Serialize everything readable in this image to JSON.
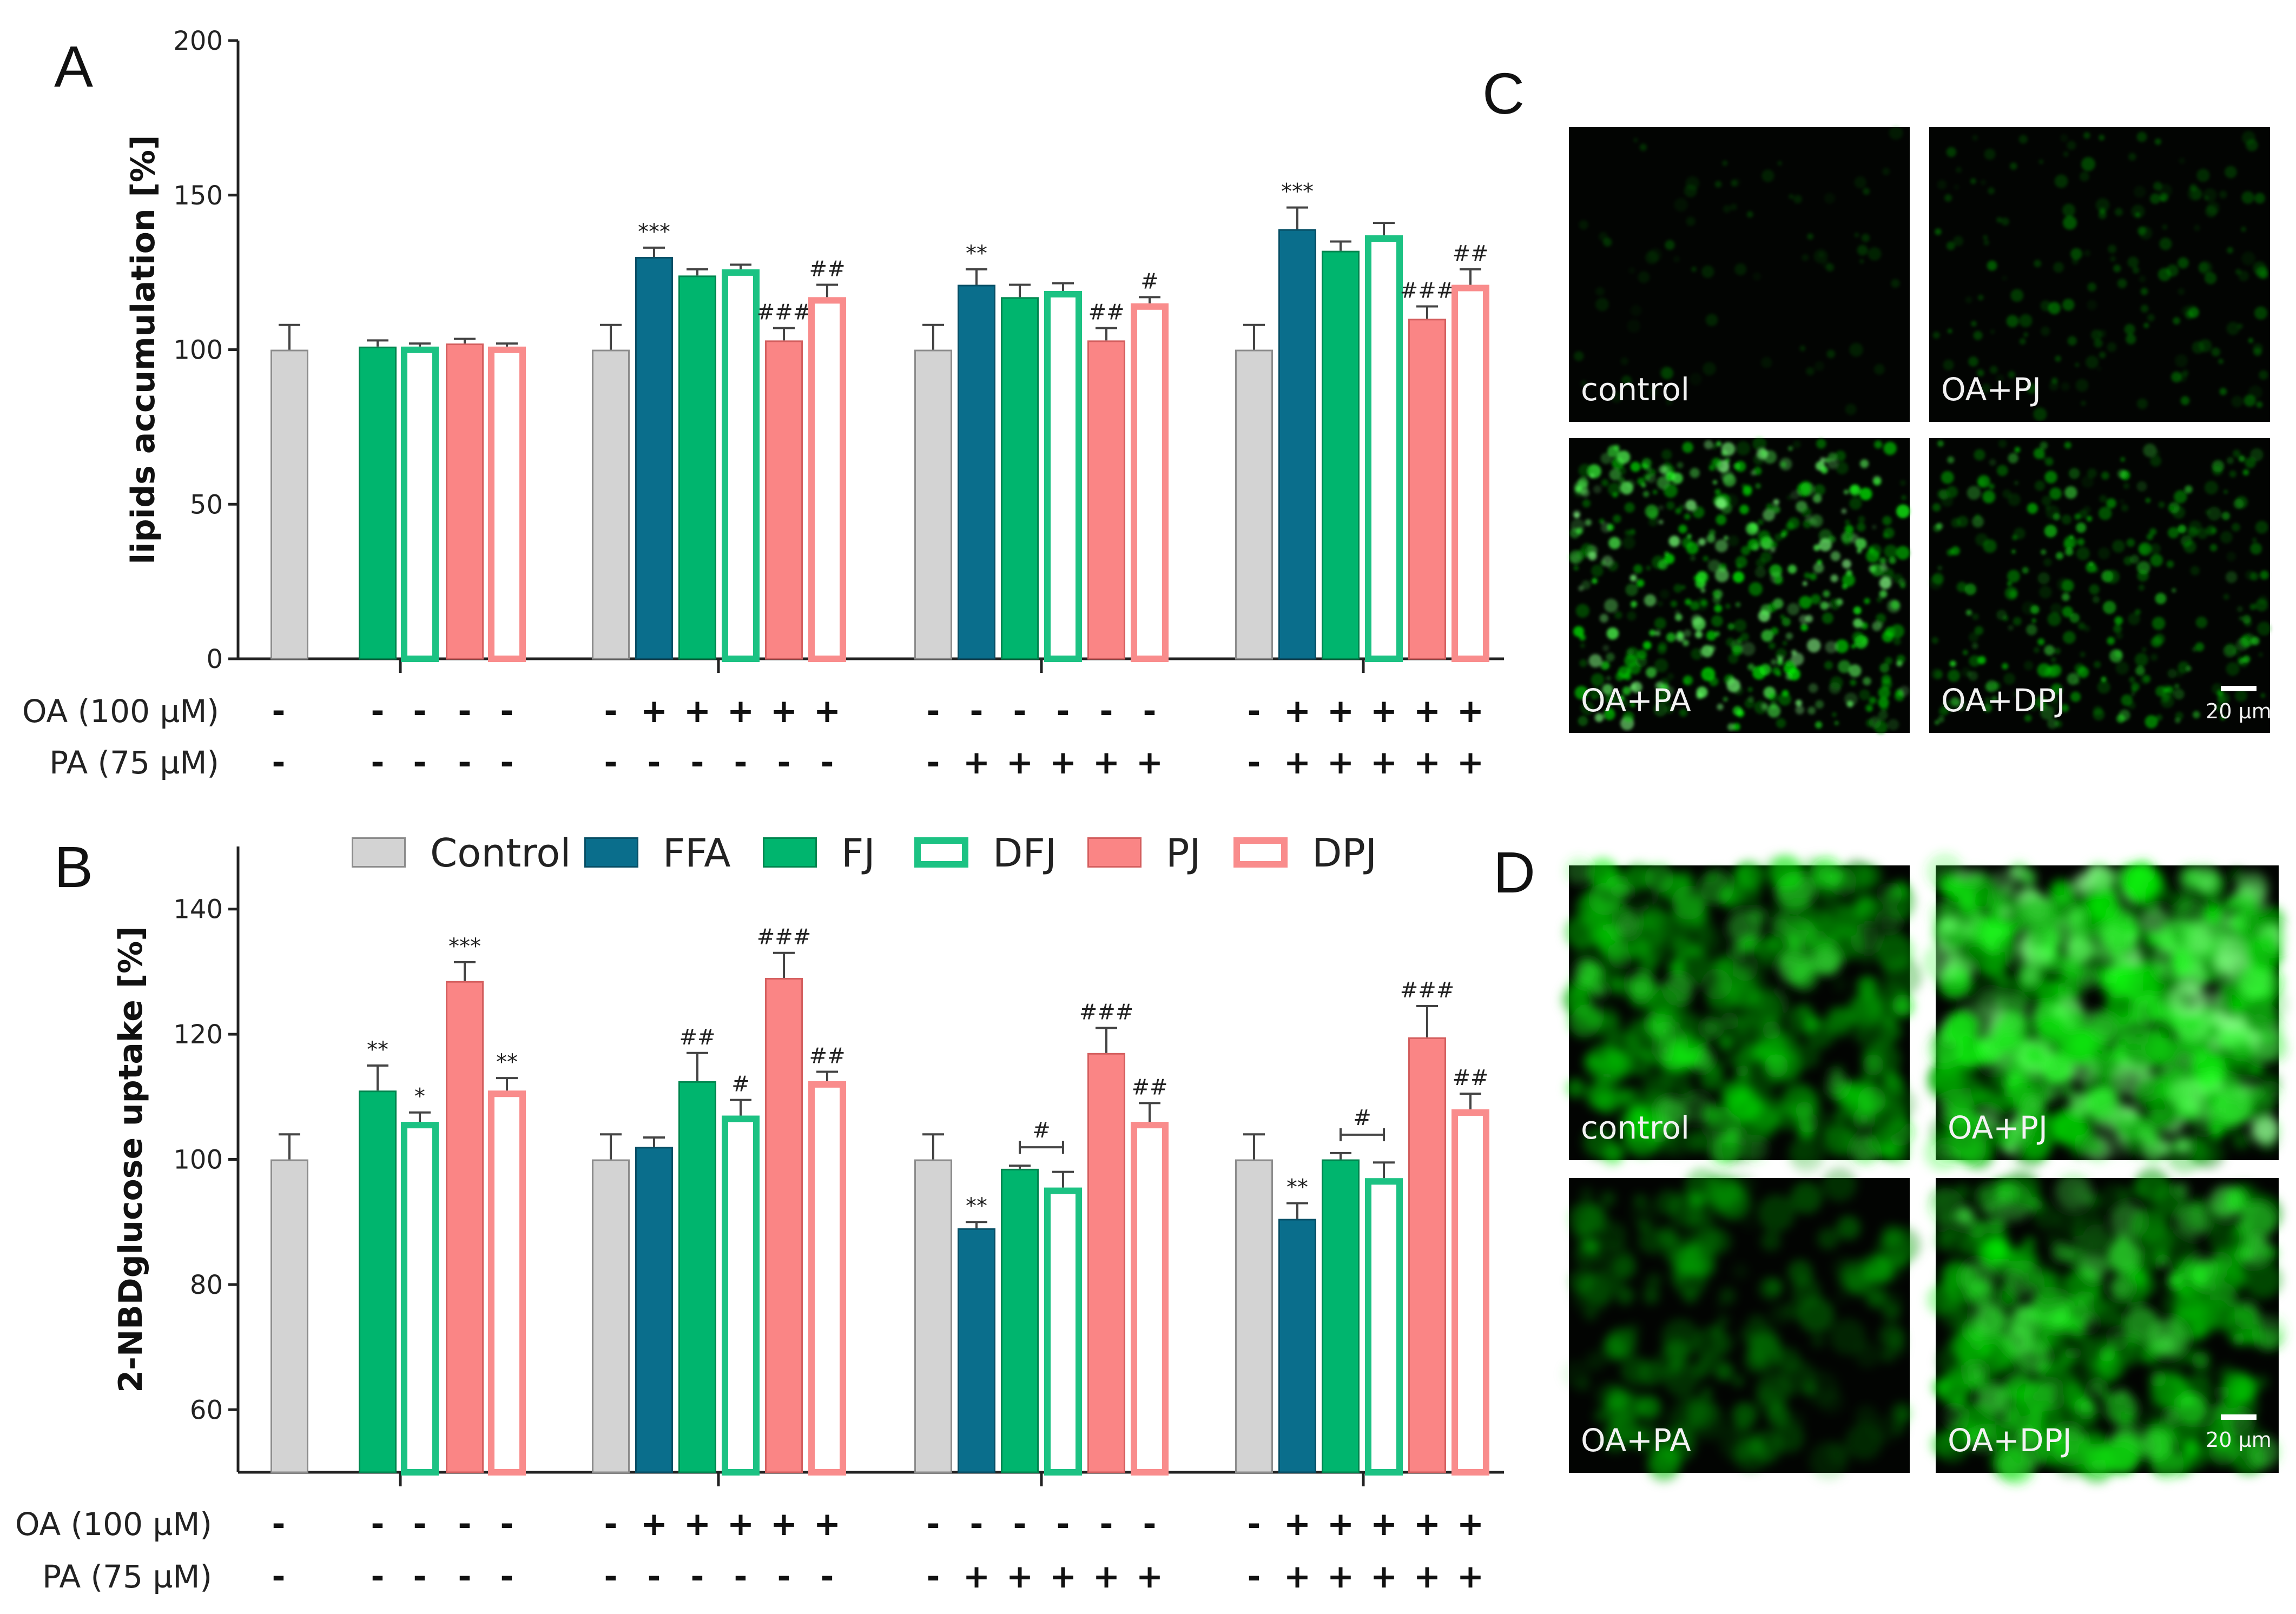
{
  "legend": {
    "items": [
      {
        "name": "Control",
        "key": "control"
      },
      {
        "name": "FFA",
        "key": "ffa"
      },
      {
        "name": "FJ",
        "key": "fj"
      },
      {
        "name": "DFJ",
        "key": "dfj"
      },
      {
        "name": "PJ",
        "key": "pj"
      },
      {
        "name": "DPJ",
        "key": "dpj"
      }
    ]
  },
  "styles": {
    "control": {
      "fill": "#d3d3d3",
      "stroke": "#8c8c8c"
    },
    "ffa": {
      "fill": "#0a6e8c",
      "stroke": "#074f66"
    },
    "fj": {
      "fill": "#00b56e",
      "stroke": "#00864f"
    },
    "dfj": {
      "fill": "#ffffff",
      "stroke": "#1cc283"
    },
    "pj": {
      "fill": "#fa8585",
      "stroke": "#d45f5f"
    },
    "dpj": {
      "fill": "#ffffff",
      "stroke": "#f98c8c"
    }
  },
  "treatment_rows": [
    {
      "label": "OA (100 µM)",
      "signs": [
        "-",
        "-",
        "-",
        "-",
        "-",
        "-",
        "+",
        "+",
        "+",
        "+",
        "+",
        "-",
        "-",
        "-",
        "-",
        "-",
        "-",
        "-",
        "+",
        "+",
        "+",
        "+",
        "+"
      ]
    },
    {
      "label": "PA (75 µM)",
      "signs": [
        "-",
        "-",
        "-",
        "-",
        "-",
        "-",
        "-",
        "-",
        "-",
        "-",
        "-",
        "-",
        "+",
        "+",
        "+",
        "+",
        "+",
        "-",
        "+",
        "+",
        "+",
        "+",
        "+"
      ]
    }
  ],
  "chart_data": [
    {
      "panel": "A",
      "type": "bar",
      "ylabel": "lipids accumulation [%]",
      "ylim": [
        0,
        200
      ],
      "yticks": [
        0,
        50,
        100,
        150,
        200
      ],
      "groups": [
        {
          "bars": [
            {
              "series": "control",
              "value": 100,
              "err": 8,
              "sig": ""
            }
          ]
        },
        {
          "bars": [
            {
              "series": "fj",
              "value": 101,
              "err": 2,
              "sig": ""
            },
            {
              "series": "dfj",
              "value": 101,
              "err": 1,
              "sig": ""
            },
            {
              "series": "pj",
              "value": 102,
              "err": 1.5,
              "sig": ""
            },
            {
              "series": "dpj",
              "value": 101,
              "err": 1,
              "sig": ""
            }
          ]
        },
        {
          "bars": [
            {
              "series": "control",
              "value": 100,
              "err": 8,
              "sig": ""
            },
            {
              "series": "ffa",
              "value": 130,
              "err": 3,
              "sig": "***"
            },
            {
              "series": "fj",
              "value": 124,
              "err": 2,
              "sig": ""
            },
            {
              "series": "dfj",
              "value": 126,
              "err": 1.5,
              "sig": ""
            },
            {
              "series": "pj",
              "value": 103,
              "err": 4,
              "sig": "###"
            },
            {
              "series": "dpj",
              "value": 117,
              "err": 4,
              "sig": "##"
            }
          ]
        },
        {
          "bars": [
            {
              "series": "control",
              "value": 100,
              "err": 8,
              "sig": ""
            },
            {
              "series": "ffa",
              "value": 121,
              "err": 5,
              "sig": "**"
            },
            {
              "series": "fj",
              "value": 117,
              "err": 4,
              "sig": ""
            },
            {
              "series": "dfj",
              "value": 119,
              "err": 2.5,
              "sig": ""
            },
            {
              "series": "pj",
              "value": 103,
              "err": 4,
              "sig": "##"
            },
            {
              "series": "dpj",
              "value": 115,
              "err": 2,
              "sig": "#"
            }
          ]
        },
        {
          "bars": [
            {
              "series": "control",
              "value": 100,
              "err": 8,
              "sig": ""
            },
            {
              "series": "ffa",
              "value": 139,
              "err": 7,
              "sig": "***"
            },
            {
              "series": "fj",
              "value": 132,
              "err": 3,
              "sig": ""
            },
            {
              "series": "dfj",
              "value": 137,
              "err": 4,
              "sig": ""
            },
            {
              "series": "pj",
              "value": 110,
              "err": 4,
              "sig": "###"
            },
            {
              "series": "dpj",
              "value": 121,
              "err": 5,
              "sig": "##"
            }
          ]
        }
      ]
    },
    {
      "panel": "B",
      "type": "bar",
      "ylabel": "2-NBDglucose uptake [%]",
      "ylim": [
        50,
        150
      ],
      "yticks": [
        60,
        80,
        100,
        120,
        140
      ],
      "groups": [
        {
          "bars": [
            {
              "series": "control",
              "value": 100,
              "err": 4,
              "sig": ""
            }
          ]
        },
        {
          "bars": [
            {
              "series": "fj",
              "value": 111,
              "err": 4,
              "sig": "**"
            },
            {
              "series": "dfj",
              "value": 106,
              "err": 1.5,
              "sig": "*"
            },
            {
              "series": "pj",
              "value": 128.5,
              "err": 3,
              "sig": "***"
            },
            {
              "series": "dpj",
              "value": 111,
              "err": 2,
              "sig": "**"
            }
          ]
        },
        {
          "bars": [
            {
              "series": "control",
              "value": 100,
              "err": 4,
              "sig": ""
            },
            {
              "series": "ffa",
              "value": 102,
              "err": 1.5,
              "sig": ""
            },
            {
              "series": "fj",
              "value": 112.5,
              "err": 4.5,
              "sig": "##"
            },
            {
              "series": "dfj",
              "value": 107,
              "err": 2.5,
              "sig": "#"
            },
            {
              "series": "pj",
              "value": 129,
              "err": 4,
              "sig": "###"
            },
            {
              "series": "dpj",
              "value": 112.5,
              "err": 1.5,
              "sig": "##"
            }
          ]
        },
        {
          "bars": [
            {
              "series": "control",
              "value": 100,
              "err": 4,
              "sig": ""
            },
            {
              "series": "ffa",
              "value": 89,
              "err": 1,
              "sig": "**"
            },
            {
              "series": "fj",
              "value": 98.5,
              "err": 0.5,
              "sig": ""
            },
            {
              "series": "dfj",
              "value": 95.5,
              "err": 2.5,
              "sig": ""
            },
            {
              "series": "pj",
              "value": 117,
              "err": 4,
              "sig": "###"
            },
            {
              "series": "dpj",
              "value": 106,
              "err": 3,
              "sig": "##"
            }
          ],
          "bracket": {
            "from": 2,
            "to": 3,
            "sig": "#"
          }
        },
        {
          "bars": [
            {
              "series": "control",
              "value": 100,
              "err": 4,
              "sig": ""
            },
            {
              "series": "ffa",
              "value": 90.5,
              "err": 2.5,
              "sig": "**"
            },
            {
              "series": "fj",
              "value": 100,
              "err": 1,
              "sig": ""
            },
            {
              "series": "dfj",
              "value": 97,
              "err": 2.5,
              "sig": ""
            },
            {
              "series": "pj",
              "value": 119.5,
              "err": 5,
              "sig": "###"
            },
            {
              "series": "dpj",
              "value": 108,
              "err": 2.5,
              "sig": "##"
            }
          ],
          "bracket": {
            "from": 2,
            "to": 3,
            "sig": "#"
          }
        }
      ]
    }
  ],
  "micrographs": {
    "C": {
      "letter": "C",
      "labels": [
        "control",
        "OA+PJ",
        "OA+PA",
        "OA+DPJ"
      ],
      "intensity": [
        0.06,
        0.25,
        0.9,
        0.55
      ],
      "scale": "20 µm"
    },
    "D": {
      "letter": "D",
      "labels": [
        "control",
        "OA+PJ",
        "OA+PA",
        "OA+DPJ"
      ],
      "intensity": [
        0.55,
        0.95,
        0.25,
        0.6
      ],
      "scale": "20 µm"
    }
  }
}
